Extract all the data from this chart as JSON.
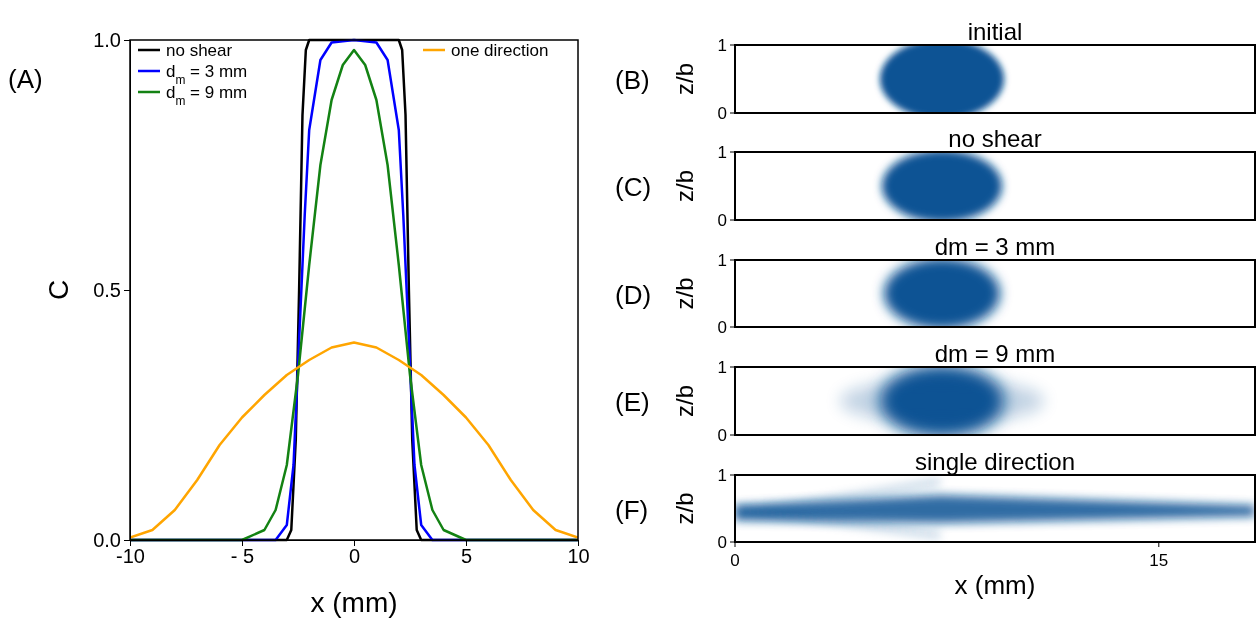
{
  "chart_data": [
    {
      "type": "line",
      "xlabel": "x (mm)",
      "ylabel": "C",
      "annotations": [
        "(A)"
      ],
      "xlim": [
        -10,
        10
      ],
      "ylim": [
        0,
        1
      ],
      "xticks": [
        {
          "value": -10,
          "label": "-10"
        },
        {
          "value": -5,
          "label": "- 5"
        },
        0,
        5,
        10
      ],
      "yticks": [
        {
          "value": 0,
          "label": "0.0"
        },
        {
          "value": 0.5,
          "label": "0.5"
        },
        {
          "value": 1,
          "label": "1.0"
        }
      ],
      "legend": "top",
      "line_style": "solid",
      "series": [
        {
          "name": "no shear",
          "color": "#000000",
          "x": [
            -10,
            -3,
            -2.8,
            -2.6,
            -2.45,
            -2.3,
            -2.15,
            -2,
            2,
            2.15,
            2.3,
            2.45,
            2.6,
            2.8,
            3,
            10
          ],
          "values": [
            0,
            0,
            0.02,
            0.2,
            0.5,
            0.85,
            0.98,
            1,
            1,
            0.98,
            0.85,
            0.5,
            0.2,
            0.02,
            0,
            0
          ]
        },
        {
          "name": "d$_{m}$ = 3 mm",
          "color": "#0000ff",
          "x": [
            -10,
            -3.5,
            -3,
            -2.7,
            -2.5,
            -2.2,
            -2,
            -1.5,
            -1,
            0,
            1,
            1.5,
            2,
            2.2,
            2.5,
            2.7,
            3,
            3.5,
            10
          ],
          "values": [
            0,
            0,
            0.03,
            0.15,
            0.35,
            0.65,
            0.82,
            0.96,
            0.995,
            1,
            0.995,
            0.96,
            0.82,
            0.65,
            0.35,
            0.15,
            0.03,
            0,
            0
          ]
        },
        {
          "name": "d$_{m}$ = 9 mm",
          "color": "#138213",
          "x": [
            -10,
            -5,
            -4,
            -3.5,
            -3,
            -2.5,
            -2,
            -1.5,
            -1,
            -0.5,
            0,
            0.5,
            1,
            1.5,
            2,
            2.5,
            3,
            3.5,
            4,
            5,
            10
          ],
          "values": [
            0,
            0,
            0.02,
            0.06,
            0.15,
            0.33,
            0.55,
            0.75,
            0.88,
            0.95,
            0.98,
            0.95,
            0.88,
            0.75,
            0.55,
            0.33,
            0.15,
            0.06,
            0.02,
            0,
            0
          ]
        },
        {
          "name": "one direction",
          "color": "#ffa500",
          "x": [
            -10,
            -9,
            -8,
            -7,
            -6,
            -5,
            -4,
            -3,
            -2,
            -1,
            0,
            1,
            2,
            3,
            4,
            5,
            6,
            7,
            8,
            9,
            10
          ],
          "values": [
            0.005,
            0.02,
            0.06,
            0.12,
            0.19,
            0.245,
            0.29,
            0.33,
            0.36,
            0.385,
            0.395,
            0.385,
            0.36,
            0.33,
            0.29,
            0.245,
            0.19,
            0.12,
            0.06,
            0.02,
            0.005
          ]
        }
      ]
    },
    {
      "type": "other",
      "title": "initial",
      "ylabel": "z/b",
      "annotations": [
        "(B)",
        "1",
        "0"
      ]
    },
    {
      "type": "other",
      "title": "no shear",
      "ylabel": "z/b",
      "annotations": [
        "(C)",
        "1",
        "0"
      ]
    },
    {
      "type": "other",
      "title": "dm = 3 mm",
      "ylabel": "z/b",
      "annotations": [
        "(D)",
        "1",
        "0"
      ]
    },
    {
      "type": "other",
      "title": "dm = 9 mm",
      "ylabel": "z/b",
      "annotations": [
        "(E)",
        "1",
        "0"
      ]
    },
    {
      "type": "other",
      "title": "single direction",
      "xlabel": "x (mm)",
      "ylabel": "z/b",
      "annotations": [
        "(F)",
        "1",
        "0",
        "0",
        "15"
      ]
    }
  ]
}
